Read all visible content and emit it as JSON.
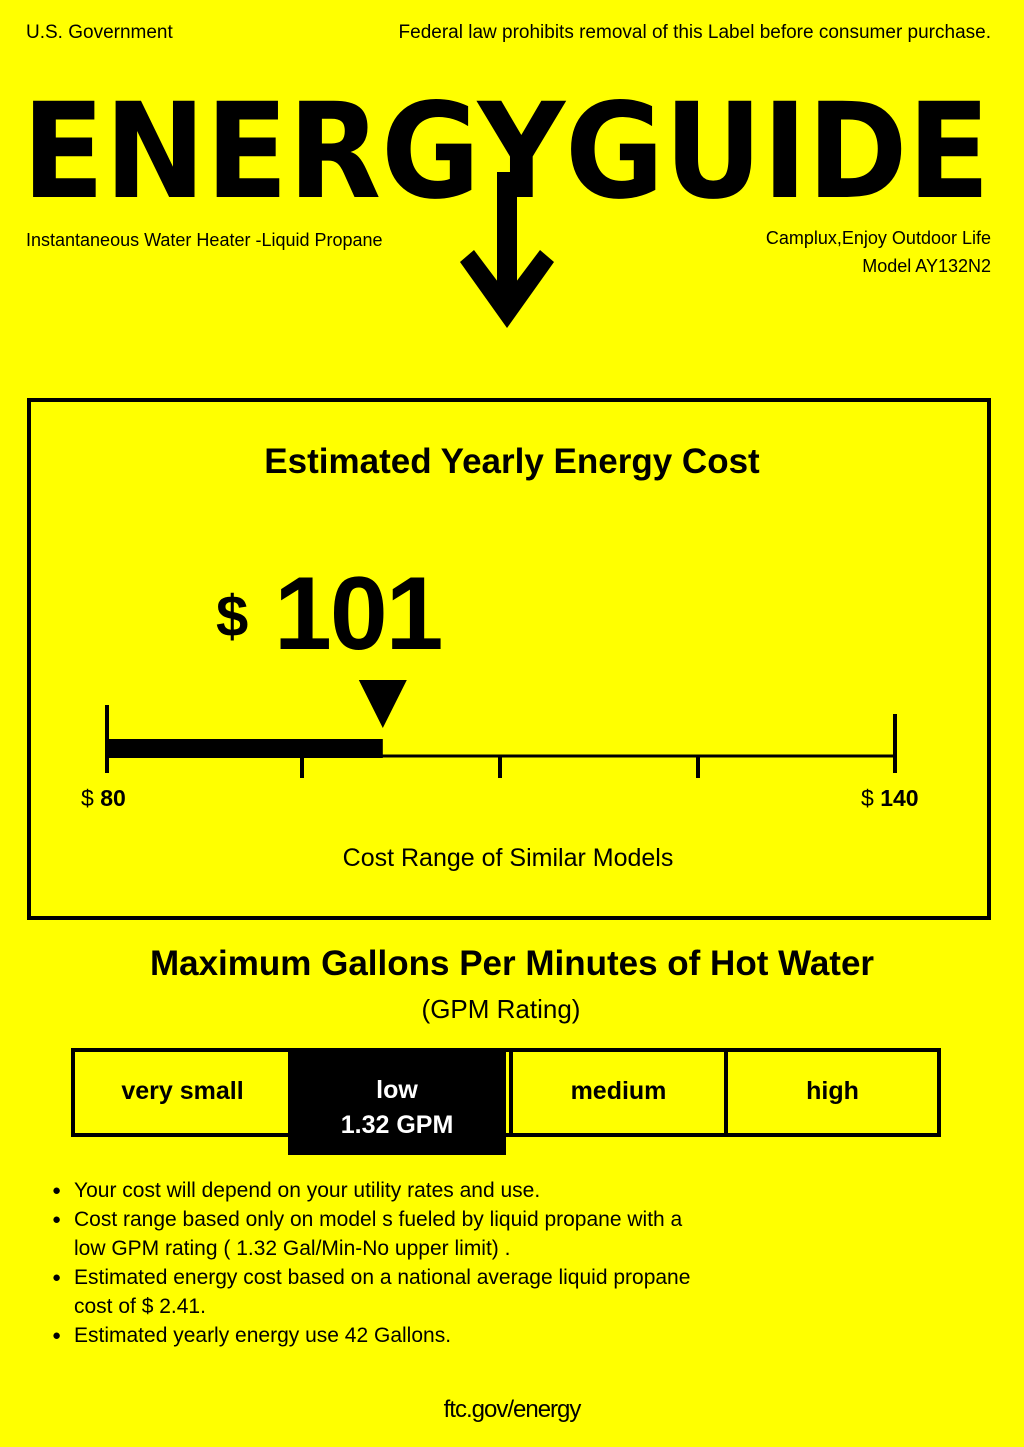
{
  "header": {
    "left_text": "U.S. Government",
    "right_text": "Federal law prohibits removal of this Label before consumer purchase.",
    "banner_text": "ENERGYGUIDE"
  },
  "product": {
    "type": "Instantaneous Water Heater -Liquid Propane",
    "brand": "Camplux,Enjoy Outdoor Life",
    "model": "Model AY132N2"
  },
  "cost": {
    "title": "Estimated Yearly Energy Cost",
    "currency": "$",
    "value": "101",
    "range_min_symbol": "$",
    "range_min": "80",
    "range_max_symbol": "$",
    "range_max": "140",
    "range_caption": "Cost Range of Similar Models",
    "range_min_num": 80,
    "range_max_num": 140,
    "value_num": 101
  },
  "gpm": {
    "title": "Maximum Gallons Per Minutes of Hot Water",
    "subtitle": "(GPM Rating)",
    "categories": [
      "very small",
      "low",
      "medium",
      "high"
    ],
    "selected_label": "low",
    "selected_value": "1.32 GPM"
  },
  "notes": [
    "Your cost will depend on your utility rates and use.",
    "Cost range based only on model s fueled by liquid propane with a",
    "low GPM rating ( 1.32 Gal/Min-No upper limit) .",
    "Estimated energy cost based on a national average liquid propane",
    "cost of  $ 2.41.",
    "Estimated yearly energy use 42 Gallons."
  ],
  "footer": "ftc.gov/energy"
}
